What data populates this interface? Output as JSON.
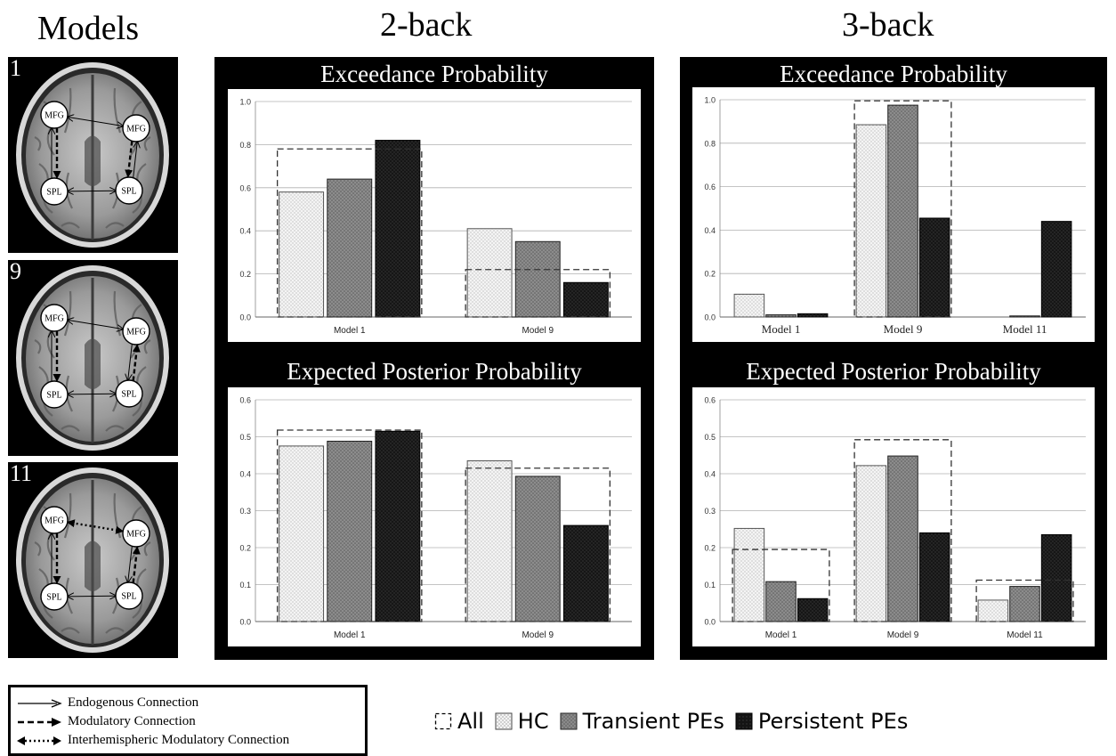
{
  "titles": {
    "models": "Models",
    "two_back": "2-back",
    "three_back": "3-back"
  },
  "models": [
    {
      "num": "1",
      "nodes": {
        "lmfg": "MFG",
        "rmfg": "MFG",
        "lspl": "SPL",
        "rspl": "SPL"
      }
    },
    {
      "num": "9",
      "nodes": {
        "lmfg": "MFG",
        "rmfg": "MFG",
        "lspl": "SPL",
        "rspl": "SPL"
      }
    },
    {
      "num": "11",
      "nodes": {
        "lmfg": "MFG",
        "rmfg": "MFG",
        "lspl": "SPL",
        "rspl": "SPL"
      }
    }
  ],
  "connection_legend": {
    "endogenous": "Endogenous Connection",
    "modulatory": "Modulatory Connection",
    "interhemispheric": "Interhemispheric Modulatory Connection"
  },
  "group_legend": [
    {
      "key": "all",
      "label": "All"
    },
    {
      "key": "hc",
      "label": "HC"
    },
    {
      "key": "transient",
      "label": "Transient PEs"
    },
    {
      "key": "persistent",
      "label": "Persistent PEs"
    }
  ],
  "colors": {
    "hc": "#f2f2f2",
    "transient": "#8c8c8c",
    "persistent": "#151515",
    "panel": "#000000"
  },
  "chart_data": [
    {
      "id": "ep2",
      "type": "bar",
      "title": "Exceedance Probability",
      "categories": [
        "Model 1",
        "Model 9"
      ],
      "ylim": [
        0,
        1.0
      ],
      "yticks": [
        "0.0",
        "0.2",
        "0.4",
        "0.6",
        "0.8",
        "1.0"
      ],
      "series": [
        {
          "name": "HC",
          "values": [
            0.58,
            0.41
          ]
        },
        {
          "name": "Transient PEs",
          "values": [
            0.64,
            0.35
          ]
        },
        {
          "name": "Persistent PEs",
          "values": [
            0.82,
            0.16
          ]
        }
      ],
      "all": [
        0.78,
        0.22
      ]
    },
    {
      "id": "epp2",
      "type": "bar",
      "title": "Expected Posterior Probability",
      "categories": [
        "Model 1",
        "Model 9"
      ],
      "ylim": [
        0,
        0.6
      ],
      "yticks": [
        "0.0",
        "0.1",
        "0.2",
        "0.3",
        "0.4",
        "0.5",
        "0.6"
      ],
      "series": [
        {
          "name": "HC",
          "values": [
            0.475,
            0.435
          ]
        },
        {
          "name": "Transient PEs",
          "values": [
            0.488,
            0.393
          ]
        },
        {
          "name": "Persistent PEs",
          "values": [
            0.515,
            0.26
          ]
        }
      ],
      "all": [
        0.518,
        0.415
      ]
    },
    {
      "id": "ep3",
      "type": "bar",
      "title": "Exceedance Probability",
      "categories": [
        "Model 1",
        "Model 9",
        "Model 11"
      ],
      "ylim": [
        0,
        1.0
      ],
      "yticks": [
        "0.0",
        "0.2",
        "0.4",
        "0.6",
        "0.8",
        "1.0"
      ],
      "series": [
        {
          "name": "HC",
          "values": [
            0.105,
            0.885,
            0.0
          ]
        },
        {
          "name": "Transient PEs",
          "values": [
            0.01,
            0.975,
            0.005
          ]
        },
        {
          "name": "Persistent PEs",
          "values": [
            0.015,
            0.455,
            0.44
          ]
        }
      ],
      "all": [
        null,
        0.995,
        null
      ]
    },
    {
      "id": "epp3",
      "type": "bar",
      "title": "Expected Posterior Probability",
      "categories": [
        "Model 1",
        "Model 9",
        "Model 11"
      ],
      "ylim": [
        0,
        0.6
      ],
      "yticks": [
        "0.0",
        "0.1",
        "0.2",
        "0.3",
        "0.4",
        "0.5",
        "0.6"
      ],
      "series": [
        {
          "name": "HC",
          "values": [
            0.252,
            0.422,
            0.058
          ]
        },
        {
          "name": "Transient PEs",
          "values": [
            0.108,
            0.448,
            0.095
          ]
        },
        {
          "name": "Persistent PEs",
          "values": [
            0.062,
            0.24,
            0.235
          ]
        }
      ],
      "all": [
        0.195,
        0.492,
        0.112
      ]
    }
  ]
}
